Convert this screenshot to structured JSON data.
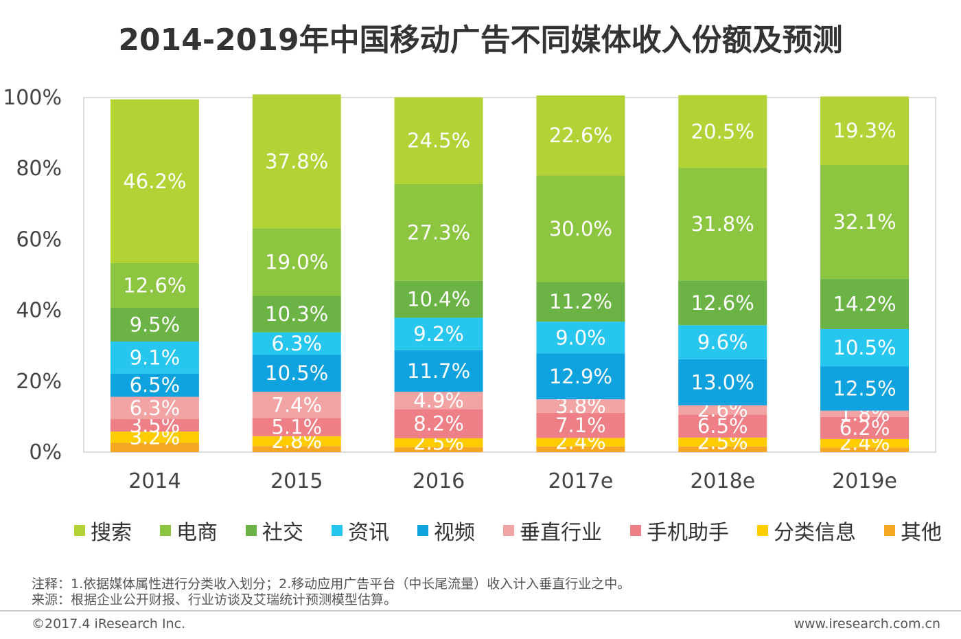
{
  "chart_data": {
    "type": "bar",
    "stacked": true,
    "title": "2014-2019年中国移动广告不同媒体收入份额及预测",
    "categories": [
      "2014",
      "2015",
      "2016",
      "2017e",
      "2018e",
      "2019e"
    ],
    "yticks": [
      "0%",
      "20%",
      "40%",
      "60%",
      "80%",
      "100%"
    ],
    "ylim": [
      0,
      100
    ],
    "legend_position": "bottom",
    "series": [
      {
        "name": "其他",
        "color": "#F5A623",
        "values": [
          2.6,
          1.7,
          1.4,
          1.6,
          1.6,
          1.3
        ],
        "labels": [
          "",
          "",
          "",
          "",
          "",
          ""
        ]
      },
      {
        "name": "分类信息",
        "color": "#FFCC00",
        "values": [
          3.2,
          2.8,
          2.5,
          2.4,
          2.5,
          2.4
        ],
        "labels": [
          "3.2%",
          "2.8%",
          "2.5%",
          "2.4%",
          "2.5%",
          "2.4%"
        ]
      },
      {
        "name": "手机助手",
        "color": "#EE7F86",
        "values": [
          3.5,
          5.1,
          8.2,
          7.1,
          6.5,
          6.2
        ],
        "labels": [
          "3.5%",
          "5.1%",
          "8.2%",
          "7.1%",
          "6.5%",
          "6.2%"
        ]
      },
      {
        "name": "垂直行业",
        "color": "#F2A3A3",
        "values": [
          6.3,
          7.4,
          4.9,
          3.8,
          2.6,
          1.8
        ],
        "labels": [
          "6.3%",
          "7.4%",
          "4.9%",
          "3.8%",
          "2.6%",
          "1.8%"
        ]
      },
      {
        "name": "视频",
        "color": "#0EA2DE",
        "values": [
          6.5,
          10.5,
          11.7,
          12.9,
          13.0,
          12.5
        ],
        "labels": [
          "6.5%",
          "10.5%",
          "11.7%",
          "12.9%",
          "13.0%",
          "12.5%"
        ]
      },
      {
        "name": "资讯",
        "color": "#27C6EE",
        "values": [
          9.1,
          6.3,
          9.2,
          9.0,
          9.6,
          10.5
        ],
        "labels": [
          "9.1%",
          "6.3%",
          "9.2%",
          "9.0%",
          "9.6%",
          "10.5%"
        ]
      },
      {
        "name": "社交",
        "color": "#6BB344",
        "values": [
          9.5,
          10.3,
          10.4,
          11.2,
          12.6,
          14.2
        ],
        "labels": [
          "9.5%",
          "10.3%",
          "10.4%",
          "11.2%",
          "12.6%",
          "14.2%"
        ]
      },
      {
        "name": "电商",
        "color": "#8CC540",
        "values": [
          12.6,
          19.0,
          27.3,
          30.0,
          31.8,
          32.1
        ],
        "labels": [
          "12.6%",
          "19.0%",
          "27.3%",
          "30.0%",
          "31.8%",
          "32.1%"
        ]
      },
      {
        "name": "搜索",
        "color": "#B3D235",
        "values": [
          46.2,
          37.8,
          24.5,
          22.6,
          20.5,
          19.3
        ],
        "labels": [
          "46.2%",
          "37.8%",
          "24.5%",
          "22.6%",
          "20.5%",
          "19.3%"
        ]
      }
    ]
  },
  "legend": [
    {
      "name": "搜索",
      "color": "#B3D235"
    },
    {
      "name": "电商",
      "color": "#8CC540"
    },
    {
      "name": "社交",
      "color": "#6BB344"
    },
    {
      "name": "资讯",
      "color": "#27C6EE"
    },
    {
      "name": "视频",
      "color": "#0EA2DE"
    },
    {
      "name": "垂直行业",
      "color": "#F2A3A3"
    },
    {
      "name": "手机助手",
      "color": "#EE7F86"
    },
    {
      "name": "分类信息",
      "color": "#FFCC00"
    },
    {
      "name": "其他",
      "color": "#F5A623"
    }
  ],
  "notes": {
    "note1": "注释：1.依据媒体属性进行分类收入划分；2.移动应用广告平台（中长尾流量）收入计入垂直行业之中。",
    "note2": "来源：根据企业公开财报、行业访谈及艾瑞统计预测模型估算。"
  },
  "footer": {
    "copyright": "©2017.4 iResearch Inc.",
    "website": "www.iresearch.com.cn"
  }
}
